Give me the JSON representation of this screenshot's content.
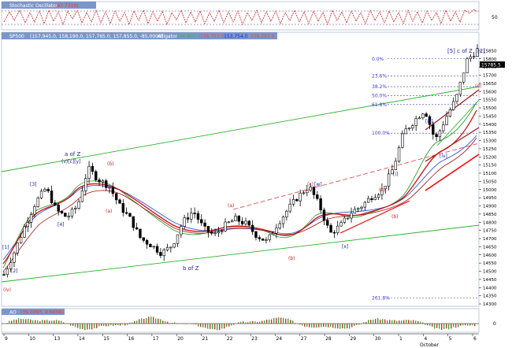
{
  "panels": {
    "stochastic": {
      "title": "Stochastic Oscillator",
      "value": "(87.7310)",
      "ticks": [
        "50"
      ]
    },
    "price": {
      "title": "SP500",
      "ohlc": "(157,945.0, 158,190.0, 157,765.0, 157,855.0, -85.0000)",
      "alligator_label": "Alligator",
      "alligator_values": [
        "156,803.0",
        "156,753.5",
        "153,754.0",
        "156,293.0"
      ],
      "y_ticks": [
        "15850",
        "15800",
        "15750",
        "15700",
        "15650",
        "15600",
        "15550",
        "15500",
        "15450",
        "15400",
        "15350",
        "15300",
        "15250",
        "15200",
        "15150",
        "15100",
        "15050",
        "15000",
        "14950",
        "14900",
        "14850",
        "14800",
        "14750",
        "14700",
        "14650",
        "14600",
        "14550",
        "14500",
        "14450",
        "14400",
        "14350",
        "14300"
      ],
      "last_price_tag": "15785.5"
    },
    "ao": {
      "title": "AO",
      "value": "(39.0093, 4.6608)",
      "ticks": [
        "0"
      ]
    }
  },
  "x_axis": {
    "ticks": [
      "9",
      "10",
      "13",
      "14",
      "15",
      "16",
      "17",
      "20",
      "21",
      "22",
      "23",
      "24",
      "27",
      "28",
      "29",
      "30",
      "1",
      "4",
      "5",
      "6"
    ],
    "month_label": "October"
  },
  "fibonacci": [
    {
      "label": "0.0%"
    },
    {
      "label": "23.6%"
    },
    {
      "label": "38.2%"
    },
    {
      "label": "50.0%"
    },
    {
      "label": "61.8%"
    },
    {
      "label": "100.0%"
    },
    {
      "label": "261.8%"
    }
  ],
  "wave_labels": {
    "top_right_a": "[5] c of Z",
    "top_right_b": "[2]",
    "a_of_z": "a of Z",
    "a_of_z_sub": "(v)[c][y]",
    "b_of_z": "b of Z",
    "iv": "(iv)",
    "l1": "[1]",
    "l2": "[2]",
    "l3": "[3]",
    "l4": "[4]",
    "b1": "(b)",
    "a1": "(a)",
    "a2": "(a)",
    "c1": "(c)",
    "w": "[w]",
    "b2": "(b)",
    "x": "[x]",
    "a3": "(a)",
    "b3": "(b)",
    "i1": "[i]",
    "iii": "[iii]",
    "iv2": "[iv]",
    "d1": "(d)"
  },
  "colors": {
    "background": "#ffffff",
    "panel_header": "#7b97c9",
    "candle": "#000000",
    "stoch_line": "#d02020",
    "stoch_band": "#4040c0",
    "channel": "#30b030",
    "trend_red": "#ff0000",
    "dashed_red": "#e05050",
    "fib_line": "#3a3ad0",
    "ma_red": "#d01010",
    "ma_green": "#30a030",
    "ma_blue": "#3050e0",
    "ma_dark": "#a01010",
    "label_blue": "#2020a0",
    "label_red": "#c02020",
    "ao_green": "#30b030",
    "ao_red": "#d03030"
  },
  "chart_data": {
    "type": "candlestick",
    "instrument": "SP500",
    "ylim": [
      14300,
      15900
    ],
    "x": [
      "9",
      "10",
      "13",
      "14",
      "15",
      "16",
      "17",
      "20",
      "21",
      "22",
      "23",
      "24",
      "27",
      "28",
      "29",
      "30",
      "1",
      "4",
      "5",
      "6"
    ],
    "month_label": "October",
    "close_path": [
      14480,
      14620,
      14780,
      14920,
      15010,
      14870,
      14830,
      14900,
      15130,
      15060,
      15020,
      14900,
      14820,
      14700,
      14660,
      14610,
      14660,
      14800,
      14870,
      14760,
      14720,
      14780,
      14820,
      14790,
      14720,
      14680,
      14790,
      14880,
      14960,
      15020,
      14900,
      14730,
      14780,
      14860,
      14900,
      14960,
      15000,
      15130,
      15350,
      15420,
      15490,
      15300,
      15440,
      15560,
      15790,
      15855
    ],
    "fib_levels": [
      {
        "label": "0.0%",
        "value": 15800
      },
      {
        "label": "23.6%",
        "value": 15695
      },
      {
        "label": "38.2%",
        "value": 15630
      },
      {
        "label": "50.0%",
        "value": 15575
      },
      {
        "label": "61.8%",
        "value": 15520
      },
      {
        "label": "100.0%",
        "value": 15345
      },
      {
        "label": "261.8%",
        "value": 14335
      }
    ],
    "ohlc_last": {
      "open": 157945.0,
      "high": 158190.0,
      "low": 157765.0,
      "close": 157855.0,
      "change": -85.0
    },
    "stochastic": 87.731,
    "ao": [
      39.0093,
      4.6608
    ]
  }
}
